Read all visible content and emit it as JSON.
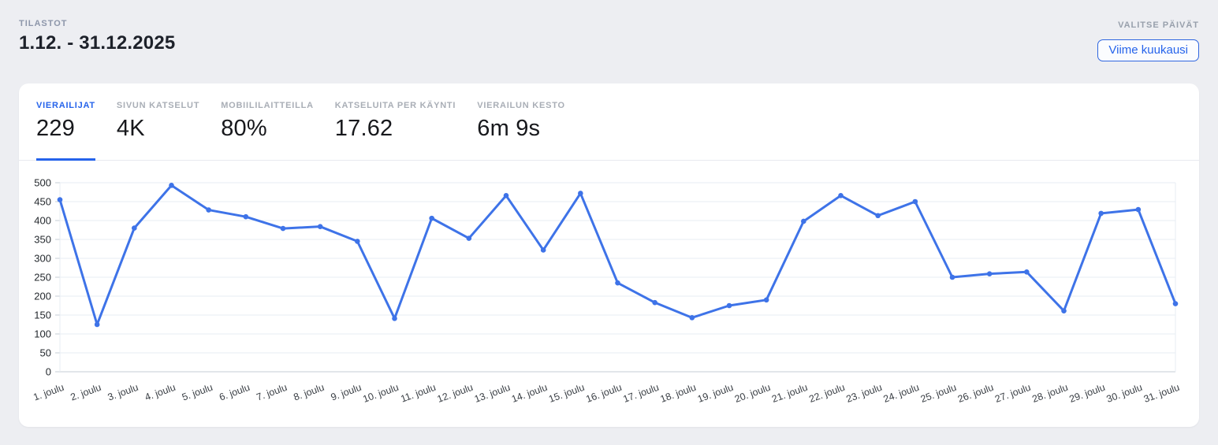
{
  "header": {
    "eyebrow": "TILASTOT",
    "date_range": "1.12. - 31.12.2025",
    "picker_label": "VALITSE PÄIVÄT",
    "picker_button": "Viime kuukausi"
  },
  "stats": [
    {
      "label": "VIERAILIJAT",
      "value": "229",
      "active": true
    },
    {
      "label": "SIVUN KATSELUT",
      "value": "4K",
      "active": false
    },
    {
      "label": "MOBIILILAITTEILLA",
      "value": "80%",
      "active": false
    },
    {
      "label": "KATSELUITA PER KÄYNTI",
      "value": "17.62",
      "active": false
    },
    {
      "label": "VIERAILUN KESTO",
      "value": "6m 9s",
      "active": false
    }
  ],
  "colors": {
    "accent_blue": "#2563eb",
    "line_blue": "#3e73e8",
    "grid_light": "#e7ecf3",
    "axis_gray": "#c6ccd5"
  },
  "chart_data": {
    "type": "line",
    "title": "",
    "xlabel": "",
    "ylabel": "",
    "x": [
      "1. joulu",
      "2. joulu",
      "3. joulu",
      "4. joulu",
      "5. joulu",
      "6. joulu",
      "7. joulu",
      "8. joulu",
      "9. joulu",
      "10. joulu",
      "11. joulu",
      "12. joulu",
      "13. joulu",
      "14. joulu",
      "15. joulu",
      "16. joulu",
      "17. joulu",
      "18. joulu",
      "19. joulu",
      "20. joulu",
      "21. joulu",
      "22. joulu",
      "23. joulu",
      "24. joulu",
      "25. joulu",
      "26. joulu",
      "27. joulu",
      "28. joulu",
      "29. joulu",
      "30. joulu",
      "31. joulu"
    ],
    "series": [
      {
        "name": "Vierailijat",
        "values": [
          455,
          125,
          380,
          493,
          428,
          410,
          379,
          384,
          345,
          141,
          406,
          353,
          466,
          322,
          472,
          235,
          183,
          143,
          175,
          190,
          398,
          466,
          413,
          450,
          250,
          259,
          264,
          161,
          419,
          429,
          180
        ]
      }
    ],
    "ylim": [
      0,
      500
    ],
    "ytick_step": 50,
    "grid": "horizontal",
    "legend": "none",
    "line_color": "#3e73e8"
  }
}
